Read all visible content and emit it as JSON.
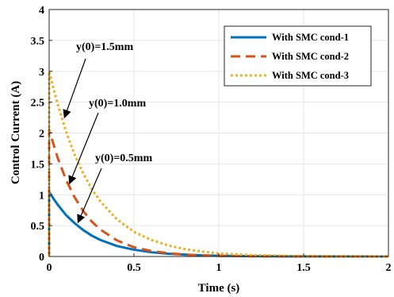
{
  "chart_data": {
    "type": "line",
    "xlabel": "Time (s)",
    "ylabel": "Control Current (A)",
    "xlim": [
      0,
      2
    ],
    "ylim": [
      0,
      4
    ],
    "x_ticks": [
      "0",
      "0.5",
      "1",
      "1.5",
      "2"
    ],
    "y_ticks": [
      "0",
      "0.5",
      "1",
      "1.5",
      "2",
      "2.5",
      "3",
      "3.5",
      "4"
    ],
    "grid": true,
    "legend_position": "top-right",
    "series": [
      {
        "name": "With SMC cond-1",
        "color": "#0072BD",
        "style": "solid",
        "x": [
          0,
          0.02,
          0.05,
          0.1,
          0.15,
          0.2,
          0.25,
          0.3,
          0.4,
          0.5,
          0.6,
          0.7,
          0.8,
          0.9,
          1.0,
          1.2,
          1.5,
          2.0
        ],
        "values": [
          1.05,
          0.96,
          0.84,
          0.67,
          0.54,
          0.43,
          0.34,
          0.27,
          0.17,
          0.11,
          0.07,
          0.045,
          0.03,
          0.02,
          0.012,
          0.005,
          0.001,
          0
        ]
      },
      {
        "name": "With SMC cond-2",
        "color": "#D95319",
        "style": "dashed",
        "x": [
          0,
          0.02,
          0.05,
          0.1,
          0.15,
          0.2,
          0.25,
          0.3,
          0.4,
          0.5,
          0.6,
          0.7,
          0.8,
          0.9,
          1.0,
          1.2,
          1.5,
          2.0
        ],
        "values": [
          2.05,
          1.87,
          1.6,
          1.24,
          0.96,
          0.74,
          0.57,
          0.44,
          0.26,
          0.15,
          0.09,
          0.055,
          0.03,
          0.018,
          0.01,
          0.004,
          0.001,
          0
        ]
      },
      {
        "name": "With SMC cond-3",
        "color": "#EDB120",
        "style": "dotted",
        "x": [
          0,
          0.02,
          0.05,
          0.1,
          0.15,
          0.2,
          0.25,
          0.3,
          0.4,
          0.5,
          0.6,
          0.7,
          0.8,
          0.9,
          1.0,
          1.2,
          1.5,
          2.0
        ],
        "values": [
          3.0,
          2.78,
          2.47,
          2.02,
          1.65,
          1.35,
          1.1,
          0.9,
          0.6,
          0.4,
          0.27,
          0.18,
          0.12,
          0.08,
          0.05,
          0.022,
          0.006,
          0
        ]
      }
    ],
    "annotations": [
      {
        "text": "y(0)=1.5mm",
        "arrow_tip": [
          0.09,
          2.25
        ]
      },
      {
        "text": "y(0)=1.0mm",
        "arrow_tip": [
          0.12,
          1.18
        ]
      },
      {
        "text": "y(0)=0.5mm",
        "arrow_tip": [
          0.17,
          0.55
        ]
      }
    ]
  }
}
